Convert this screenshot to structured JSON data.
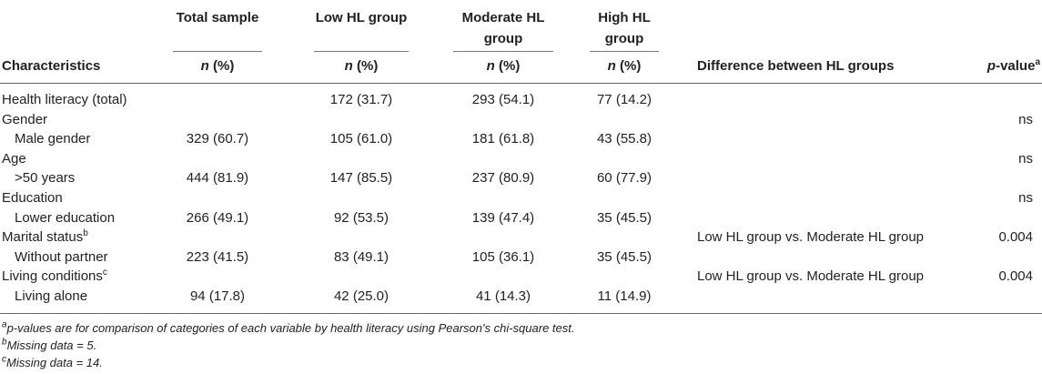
{
  "header": {
    "col_total": "Total sample",
    "col_low": "Low HL group",
    "col_moderate_1": "Moderate HL",
    "col_moderate_2": "group",
    "col_high_1": "High HL",
    "col_high_2": "group",
    "characteristics": "Characteristics",
    "n_label": "n",
    "pct_label": " (%)",
    "difference": "Difference between HL groups",
    "pvalue_prefix": "p",
    "pvalue_suffix": "-value",
    "pvalue_sup": "a"
  },
  "rows": [
    {
      "label": "Health literacy (total)",
      "sup": "",
      "indent": false,
      "total": "",
      "low": "172 (31.7)",
      "moderate": "293 (54.1)",
      "high": "77 (14.2)",
      "diff": "",
      "p": ""
    },
    {
      "label": "Gender",
      "sup": "",
      "indent": false,
      "total": "",
      "low": "",
      "moderate": "",
      "high": "",
      "diff": "",
      "p": "ns"
    },
    {
      "label": "Male gender",
      "sup": "",
      "indent": true,
      "total": "329 (60.7)",
      "low": "105 (61.0)",
      "moderate": "181 (61.8)",
      "high": "43 (55.8)",
      "diff": "",
      "p": ""
    },
    {
      "label": "Age",
      "sup": "",
      "indent": false,
      "total": "",
      "low": "",
      "moderate": "",
      "high": "",
      "diff": "",
      "p": "ns"
    },
    {
      "label": ">50 years",
      "sup": "",
      "indent": true,
      "total": "444 (81.9)",
      "low": "147 (85.5)",
      "moderate": "237 (80.9)",
      "high": "60 (77.9)",
      "diff": "",
      "p": ""
    },
    {
      "label": "Education",
      "sup": "",
      "indent": false,
      "total": "",
      "low": "",
      "moderate": "",
      "high": "",
      "diff": "",
      "p": "ns"
    },
    {
      "label": "Lower education",
      "sup": "",
      "indent": true,
      "total": "266 (49.1)",
      "low": "92 (53.5)",
      "moderate": "139 (47.4)",
      "high": "35 (45.5)",
      "diff": "",
      "p": ""
    },
    {
      "label": "Marital status",
      "sup": "b",
      "indent": false,
      "total": "",
      "low": "",
      "moderate": "",
      "high": "",
      "diff": "Low HL group vs. Moderate HL group",
      "p": "0.004"
    },
    {
      "label": "Without partner",
      "sup": "",
      "indent": true,
      "total": "223 (41.5)",
      "low": "83 (49.1)",
      "moderate": "105 (36.1)",
      "high": "35 (45.5)",
      "diff": "",
      "p": ""
    },
    {
      "label": "Living conditions",
      "sup": "c",
      "indent": false,
      "total": "",
      "low": "",
      "moderate": "",
      "high": "",
      "diff": "Low HL group vs. Moderate HL group",
      "p": "0.004"
    },
    {
      "label": "Living alone",
      "sup": "",
      "indent": true,
      "total": "94 (17.8)",
      "low": "42 (25.0)",
      "moderate": "41 (14.3)",
      "high": "11 (14.9)",
      "diff": "",
      "p": ""
    }
  ],
  "footnotes": [
    {
      "sup": "a",
      "text": "p-values are for comparison of categories of each variable by health literacy using Pearson's chi-square test."
    },
    {
      "sup": "b",
      "text": "Missing data = 5."
    },
    {
      "sup": "c",
      "text": "Missing data = 14."
    }
  ]
}
